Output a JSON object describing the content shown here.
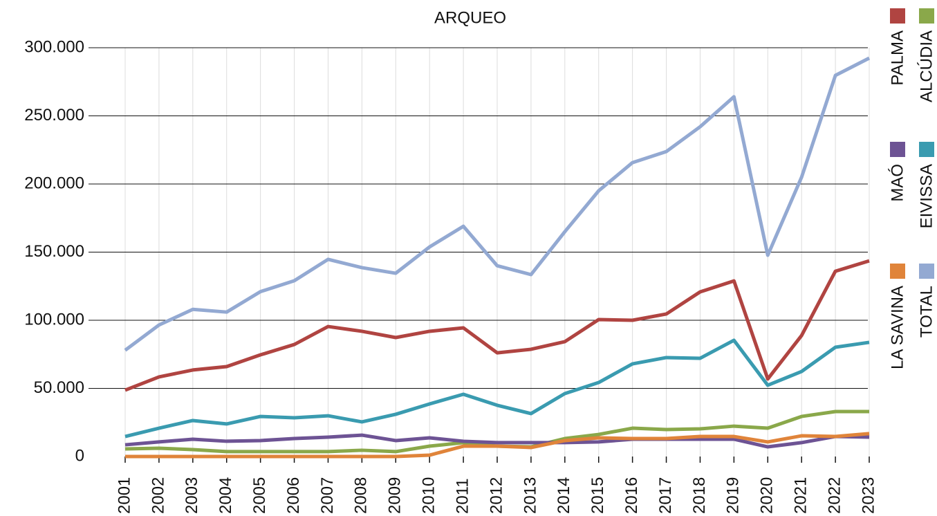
{
  "chart_data": {
    "type": "line",
    "title": "ARQUEO",
    "categories": [
      "2001",
      "2002",
      "2003",
      "2004",
      "2005",
      "2006",
      "2007",
      "2008",
      "2009",
      "2010",
      "2011",
      "2012",
      "2013",
      "2014",
      "2015",
      "2016",
      "2017",
      "2018",
      "2019",
      "2020",
      "2021",
      "2022",
      "2023"
    ],
    "series": [
      {
        "name": "PALMA",
        "color": "#b04441",
        "values": [
          48700,
          58400,
          63500,
          66000,
          74600,
          82200,
          95400,
          91900,
          87300,
          91900,
          94400,
          76100,
          78700,
          84300,
          100500,
          100000,
          104600,
          120800,
          128900,
          56900,
          88800,
          136000,
          143600
        ]
      },
      {
        "name": "ALCÚDIA",
        "color": "#8aa84a",
        "values": [
          5600,
          6100,
          5100,
          3600,
          3600,
          3600,
          3600,
          4600,
          3600,
          7600,
          10200,
          7600,
          7100,
          13200,
          16200,
          20800,
          19800,
          20300,
          22300,
          20800,
          29400,
          33000,
          33000
        ]
      },
      {
        "name": "MAÓ",
        "color": "#6d5394",
        "values": [
          8600,
          10700,
          12700,
          11200,
          11700,
          13200,
          14200,
          15700,
          11700,
          13700,
          11200,
          10200,
          10200,
          10200,
          10700,
          12700,
          12700,
          12700,
          12700,
          7100,
          10200,
          14700,
          14200
        ]
      },
      {
        "name": "EIVISSA",
        "color": "#3a9bb0",
        "values": [
          14700,
          20800,
          26400,
          23900,
          29400,
          28400,
          29900,
          25400,
          31000,
          38600,
          45700,
          37600,
          31500,
          46200,
          54300,
          68000,
          72600,
          72100,
          85300,
          52300,
          62400,
          80200,
          83800
        ]
      },
      {
        "name": "LA SAVINA",
        "color": "#e0843a",
        "values": [
          0,
          0,
          0,
          0,
          0,
          0,
          0,
          0,
          0,
          1000,
          7600,
          7600,
          6600,
          11700,
          13700,
          13200,
          13200,
          14700,
          14700,
          10700,
          15200,
          14700,
          16800
        ]
      },
      {
        "name": "TOTAL",
        "color": "#93a9d2",
        "values": [
          78000,
          96500,
          108000,
          106000,
          121000,
          129000,
          144700,
          138600,
          134500,
          153800,
          169000,
          140000,
          133500,
          165000,
          195000,
          215700,
          223800,
          242000,
          264000,
          147700,
          205000,
          279700,
          292400
        ]
      }
    ],
    "ylim": [
      0,
      300000
    ],
    "yticks": [
      0,
      {
        "value": 50000,
        "label": "50.000"
      },
      {
        "value": 100000,
        "label": "100.000"
      },
      {
        "value": 150000,
        "label": "150.000"
      },
      {
        "value": 200000,
        "label": "200.000"
      },
      {
        "value": 250000,
        "label": "250.000"
      },
      {
        "value": 300000,
        "label": "300.000"
      }
    ],
    "grid": true,
    "legend": "right"
  }
}
